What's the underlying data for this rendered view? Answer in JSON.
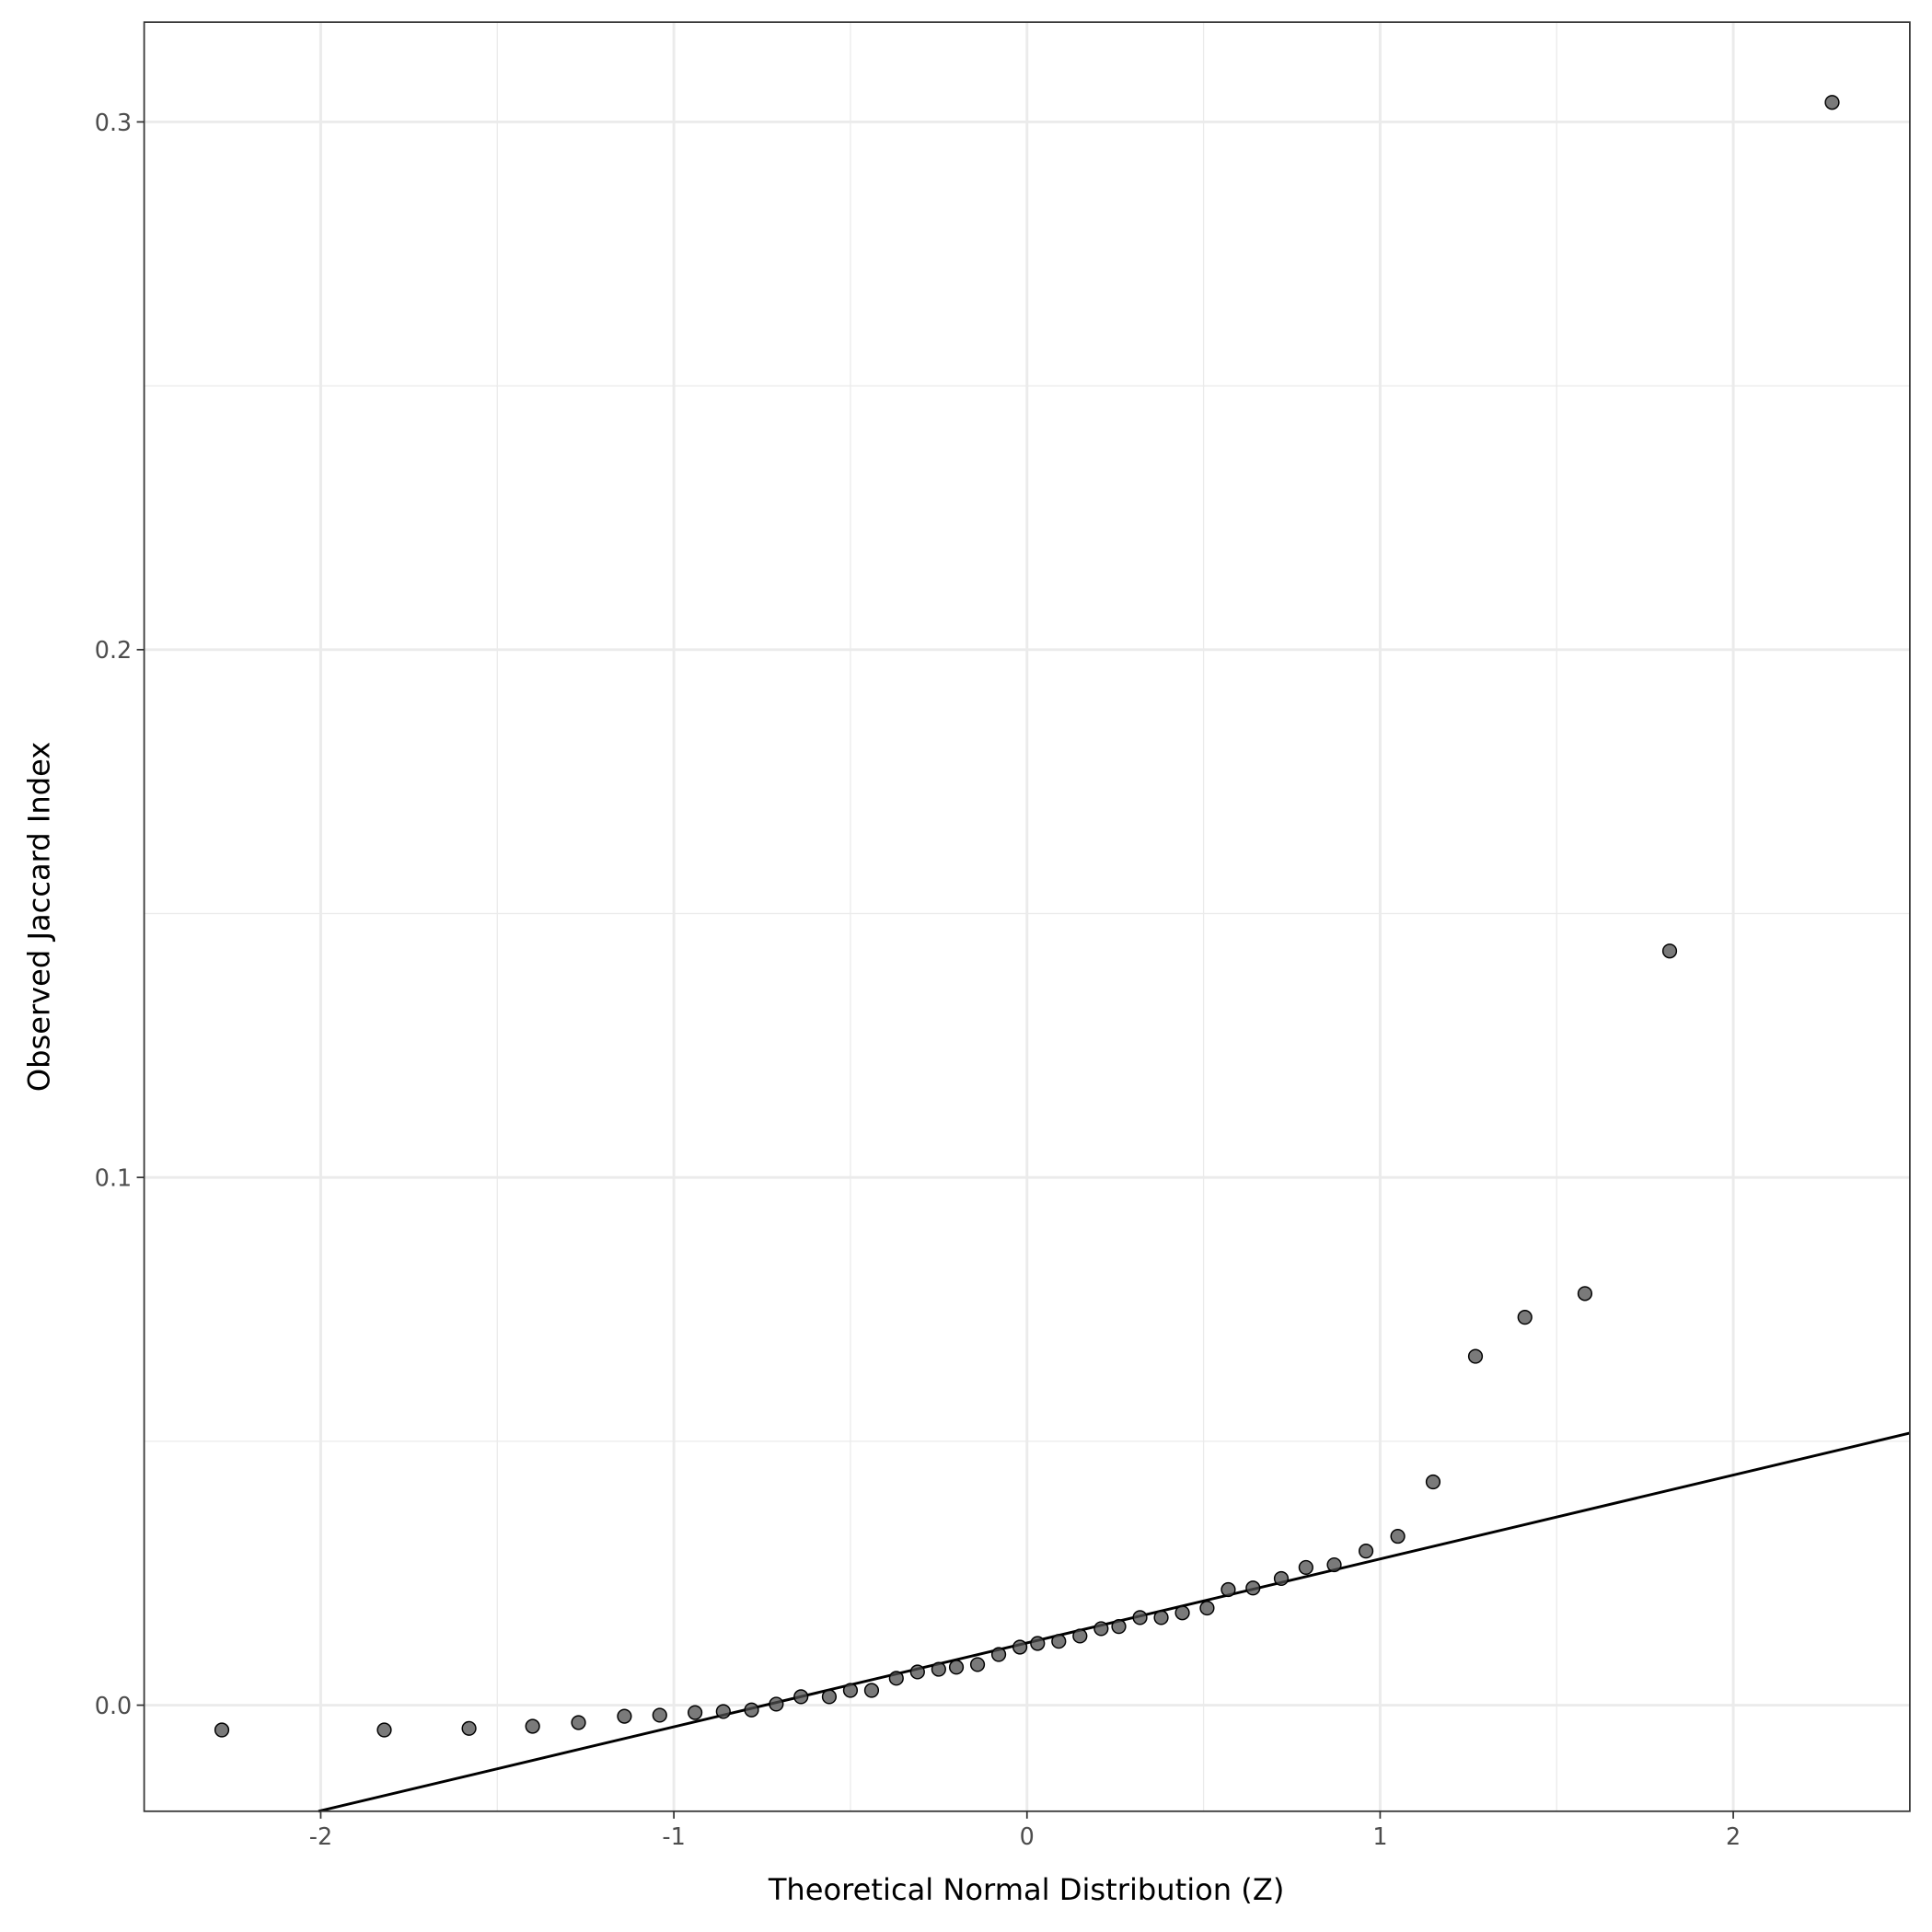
{
  "chart_data": {
    "type": "scatter",
    "title": "",
    "xlabel": "Theoretical Normal Distribution (Z)",
    "ylabel": "Observed Jaccard Index",
    "xlim": [
      -2.5,
      2.5
    ],
    "ylim": [
      -0.0201,
      0.3189
    ],
    "x_ticks": [
      -2,
      -1,
      0,
      1,
      2
    ],
    "x_tick_labels": [
      "-2",
      "-1",
      "0",
      "1",
      "2"
    ],
    "y_ticks": [
      0.0,
      0.1,
      0.2,
      0.3
    ],
    "y_tick_labels": [
      "0.0",
      "0.1",
      "0.2",
      "0.3"
    ],
    "grid": true,
    "point_color": "#4d4d4d",
    "reference_line": {
      "intercept": 0.0118,
      "slope": 0.0159,
      "color": "#000000"
    },
    "points": [
      [
        -2.28,
        -0.0047
      ],
      [
        -1.82,
        -0.0047
      ],
      [
        -1.58,
        -0.0044
      ],
      [
        -1.4,
        -0.004
      ],
      [
        -1.27,
        -0.0033
      ],
      [
        -1.14,
        -0.0021
      ],
      [
        -1.04,
        -0.0019
      ],
      [
        -0.94,
        -0.0014
      ],
      [
        -0.86,
        -0.0012
      ],
      [
        -0.78,
        -0.0009
      ],
      [
        -0.71,
        0.0002
      ],
      [
        -0.64,
        0.0016
      ],
      [
        -0.56,
        0.0016
      ],
      [
        -0.5,
        0.0028
      ],
      [
        -0.44,
        0.0028
      ],
      [
        -0.37,
        0.0051
      ],
      [
        -0.31,
        0.0063
      ],
      [
        -0.25,
        0.0068
      ],
      [
        -0.2,
        0.0072
      ],
      [
        -0.14,
        0.0077
      ],
      [
        -0.08,
        0.0096
      ],
      [
        -0.02,
        0.011
      ],
      [
        0.03,
        0.0117
      ],
      [
        0.09,
        0.0121
      ],
      [
        0.15,
        0.0131
      ],
      [
        0.21,
        0.0145
      ],
      [
        0.26,
        0.0149
      ],
      [
        0.32,
        0.0166
      ],
      [
        0.38,
        0.0166
      ],
      [
        0.44,
        0.0175
      ],
      [
        0.51,
        0.0184
      ],
      [
        0.57,
        0.0219
      ],
      [
        0.64,
        0.0222
      ],
      [
        0.72,
        0.024
      ],
      [
        0.79,
        0.0261
      ],
      [
        0.87,
        0.0266
      ],
      [
        0.96,
        0.0292
      ],
      [
        1.05,
        0.032
      ],
      [
        1.15,
        0.0423
      ],
      [
        1.27,
        0.0661
      ],
      [
        1.41,
        0.0735
      ],
      [
        1.58,
        0.078
      ],
      [
        1.82,
        0.1429
      ],
      [
        2.28,
        0.3037
      ]
    ]
  }
}
